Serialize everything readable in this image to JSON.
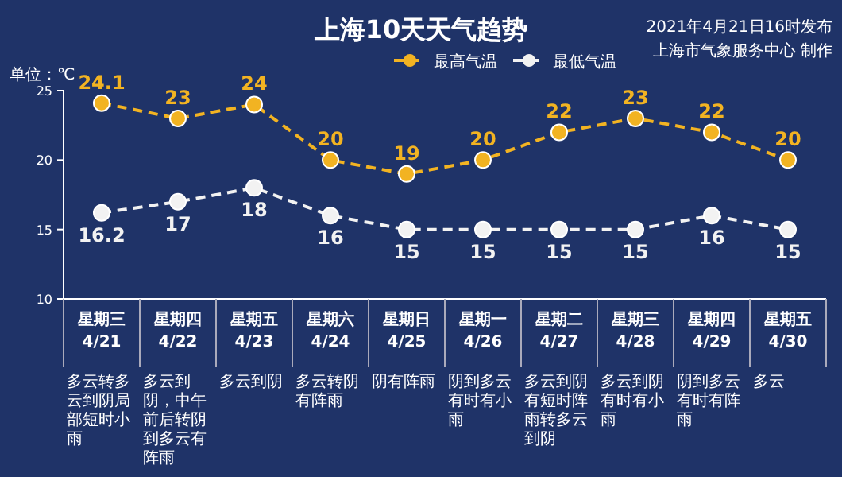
{
  "chart_data": {
    "type": "line",
    "title": "上海10天天气趋势",
    "ylabel": "单位：℃",
    "categories": [
      "星期三 4/21",
      "星期四 4/22",
      "星期五 4/23",
      "星期六 4/24",
      "星期日 4/25",
      "星期一 4/26",
      "星期二 4/27",
      "星期三 4/28",
      "星期四 4/29",
      "星期五 4/30"
    ],
    "series": [
      {
        "name": "最高气温",
        "color": "#f2b322",
        "values": [
          24.1,
          23,
          24,
          20,
          19,
          20,
          22,
          23,
          22,
          20
        ]
      },
      {
        "name": "最低气温",
        "color": "#f2f2f2",
        "values": [
          16.2,
          17,
          18,
          16,
          15,
          15,
          15,
          15,
          16,
          15
        ]
      }
    ],
    "ylim": [
      10,
      25
    ],
    "yticks": [
      10,
      15,
      20,
      25
    ],
    "data_labels": true,
    "legend": "top",
    "marker": "circle",
    "line_style": "dashed",
    "grid": false,
    "annotations": [
      "2021年4月21日16时发布",
      "上海市气象服务中心 制作",
      "多云转多云到阴局部短时小雨",
      "多云到阴，中午前后转阴到多云有阵雨",
      "多云到阴",
      "多云转阴有阵雨",
      "阴有阵雨",
      "阴到多云有时有小雨",
      "多云到阴有短时阵雨转多云到阴",
      "多云到阴有时有小雨",
      "阴到多云有时有阵雨",
      "多云"
    ]
  }
}
